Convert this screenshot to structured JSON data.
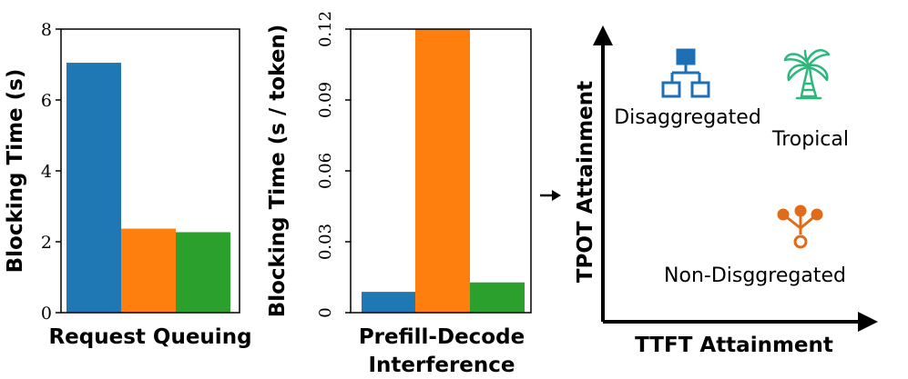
{
  "colors": {
    "blue": "#1f77b4",
    "orange": "#ff7f0e",
    "green": "#2ca02c",
    "icon_blue": "#1f6fb4",
    "icon_green": "#2cb87a",
    "icon_orange": "#e06b1a"
  },
  "chart_data": [
    {
      "type": "bar",
      "xlabel": "Request Queuing",
      "ylabel": "Blocking Time (s)",
      "ylim": [
        0,
        8
      ],
      "yticks": [
        "0",
        "2",
        "4",
        "6",
        "8"
      ],
      "categories": [
        "",
        "",
        ""
      ],
      "values": [
        7.05,
        2.37,
        2.27
      ],
      "colors": [
        "#1f77b4",
        "#ff7f0e",
        "#2ca02c"
      ]
    },
    {
      "type": "bar",
      "xlabel": [
        "Prefill-Decode",
        "Interference"
      ],
      "ylabel": "Blocking Time (s / token)",
      "ylim": [
        0,
        0.12
      ],
      "yticks": [
        "0",
        "0.03",
        "0.06",
        "0.09",
        "0.12"
      ],
      "categories": [
        "",
        "",
        ""
      ],
      "values": [
        0.0088,
        0.12,
        0.0128
      ],
      "colors": [
        "#1f77b4",
        "#ff7f0e",
        "#2ca02c"
      ]
    },
    {
      "type": "scatter",
      "xlabel": "TTFT Attainment",
      "ylabel": "TPOT Attainment",
      "points": [
        {
          "label": "Disaggregated",
          "icon": "hierarchy-icon"
        },
        {
          "label": "Tropical",
          "icon": "palm-tree-icon"
        },
        {
          "label": "Non-Disggregated",
          "icon": "branch-merge-icon"
        }
      ]
    }
  ]
}
